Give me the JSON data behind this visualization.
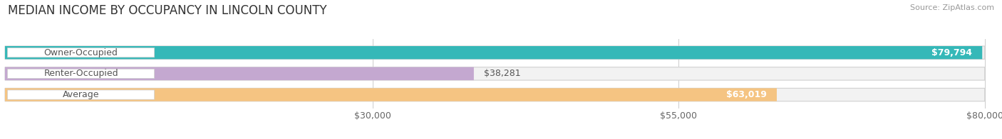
{
  "title": "MEDIAN INCOME BY OCCUPANCY IN LINCOLN COUNTY",
  "source": "Source: ZipAtlas.com",
  "categories": [
    "Owner-Occupied",
    "Renter-Occupied",
    "Average"
  ],
  "values": [
    79794,
    38281,
    63019
  ],
  "bar_colors": [
    "#35b8b8",
    "#c4a8d0",
    "#f5c482"
  ],
  "bar_bg_colors": [
    "#eeeeee",
    "#f2f2f2",
    "#f2f2f2"
  ],
  "value_labels": [
    "$79,794",
    "$38,281",
    "$63,019"
  ],
  "value_label_inside": [
    true,
    false,
    true
  ],
  "xlim_min": 0,
  "xlim_max": 80000,
  "xticks": [
    30000,
    55000,
    80000
  ],
  "xtick_labels": [
    "$30,000",
    "$55,000",
    "$80,000"
  ],
  "title_fontsize": 12,
  "source_fontsize": 8,
  "tick_fontsize": 9,
  "cat_fontsize": 9,
  "val_fontsize": 9,
  "bar_height": 0.62,
  "grid_color": "#cccccc",
  "bg_color": "#ffffff",
  "label_pill_color": "#ffffff",
  "label_text_color": "#555555",
  "val_inside_color": "#ffffff",
  "val_outside_color": "#555555"
}
